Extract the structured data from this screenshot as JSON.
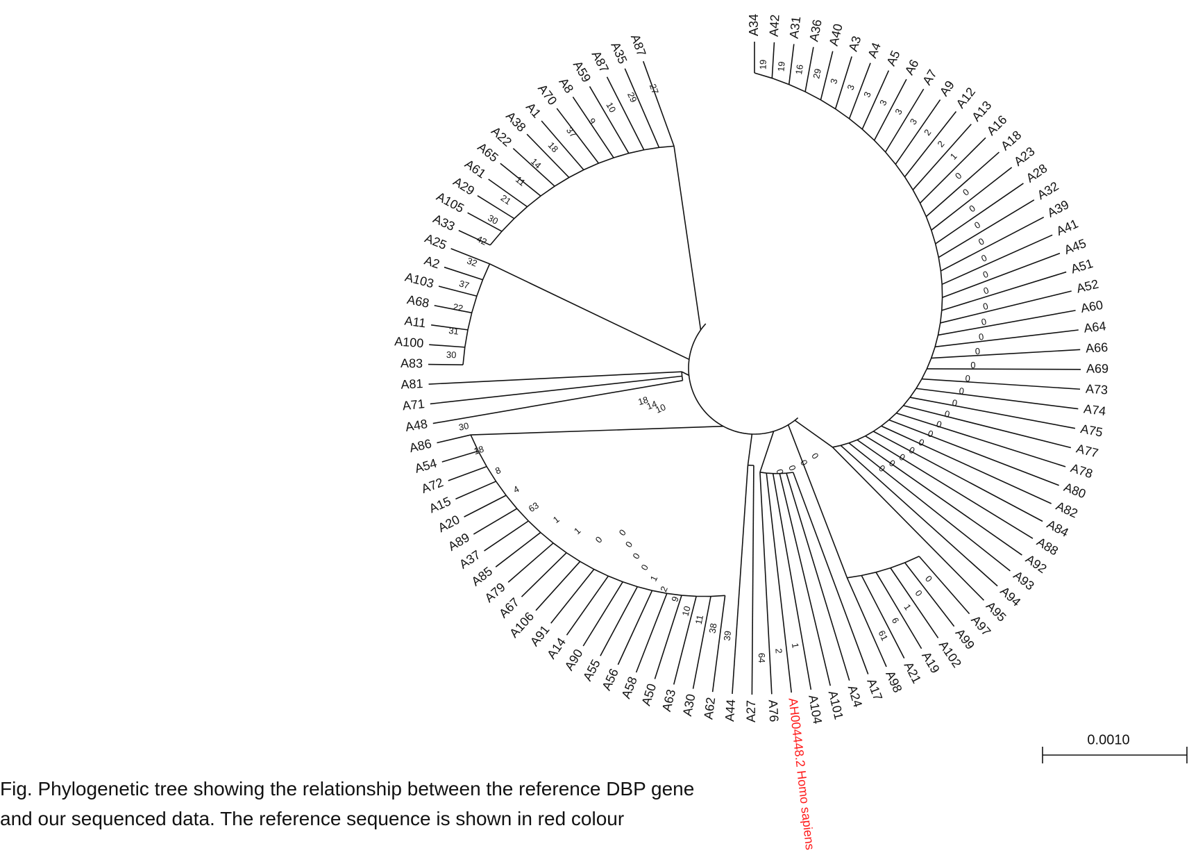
{
  "tree": {
    "leaves": [
      {
        "label": "A34"
      },
      {
        "label": "A42"
      },
      {
        "label": "A31"
      },
      {
        "label": "A36"
      },
      {
        "label": "A40"
      },
      {
        "label": "A3"
      },
      {
        "label": "A4"
      },
      {
        "label": "A5"
      },
      {
        "label": "A6"
      },
      {
        "label": "A7"
      },
      {
        "label": "A9"
      },
      {
        "label": "A12"
      },
      {
        "label": "A13"
      },
      {
        "label": "A16"
      },
      {
        "label": "A18"
      },
      {
        "label": "A23"
      },
      {
        "label": "A28"
      },
      {
        "label": "A32"
      },
      {
        "label": "A39"
      },
      {
        "label": "A41"
      },
      {
        "label": "A45"
      },
      {
        "label": "A51"
      },
      {
        "label": "A52"
      },
      {
        "label": "A60"
      },
      {
        "label": "A64"
      },
      {
        "label": "A66"
      },
      {
        "label": "A69"
      },
      {
        "label": "A73"
      },
      {
        "label": "A74"
      },
      {
        "label": "A75"
      },
      {
        "label": "A77"
      },
      {
        "label": "A78"
      },
      {
        "label": "A80"
      },
      {
        "label": "A82"
      },
      {
        "label": "A84"
      },
      {
        "label": "A88"
      },
      {
        "label": "A92"
      },
      {
        "label": "A93"
      },
      {
        "label": "A94"
      },
      {
        "label": "A95"
      },
      {
        "label": "A97"
      },
      {
        "label": "A99"
      },
      {
        "label": "A102"
      },
      {
        "label": "A19"
      },
      {
        "label": "A21"
      },
      {
        "label": "A98"
      },
      {
        "label": "A17"
      },
      {
        "label": "A24"
      },
      {
        "label": "A101"
      },
      {
        "label": "A104"
      },
      {
        "label": "AH004448.2 Homo sapiens",
        "color": "#ff1a1a"
      },
      {
        "label": "A76"
      },
      {
        "label": "A27"
      },
      {
        "label": "A44"
      },
      {
        "label": "A62"
      },
      {
        "label": "A30"
      },
      {
        "label": "A63"
      },
      {
        "label": "A50"
      },
      {
        "label": "A58"
      },
      {
        "label": "A56"
      },
      {
        "label": "A55"
      },
      {
        "label": "A90"
      },
      {
        "label": "A14"
      },
      {
        "label": "A91"
      },
      {
        "label": "A106"
      },
      {
        "label": "A67"
      },
      {
        "label": "A79"
      },
      {
        "label": "A85"
      },
      {
        "label": "A37"
      },
      {
        "label": "A89"
      },
      {
        "label": "A20"
      },
      {
        "label": "A15"
      },
      {
        "label": "A72"
      },
      {
        "label": "A54"
      },
      {
        "label": "A86"
      },
      {
        "label": "A48"
      },
      {
        "label": "A71"
      },
      {
        "label": "A81"
      },
      {
        "label": "A83"
      },
      {
        "label": "A100"
      },
      {
        "label": "A11"
      },
      {
        "label": "A68"
      },
      {
        "label": "A103"
      },
      {
        "label": "A2"
      },
      {
        "label": "A25"
      },
      {
        "label": "A33"
      },
      {
        "label": "A105"
      },
      {
        "label": "A29"
      },
      {
        "label": "A61"
      },
      {
        "label": "A65"
      },
      {
        "label": "A22"
      },
      {
        "label": "A38"
      },
      {
        "label": "A1"
      },
      {
        "label": "A70"
      },
      {
        "label": "A8"
      },
      {
        "label": "A59"
      },
      {
        "label": "A87"
      },
      {
        "label": "A35"
      },
      {
        "label": "A87"
      }
    ],
    "bootstrap": [
      19,
      19,
      16,
      29,
      3,
      3,
      3,
      3,
      3,
      3,
      2,
      2,
      1,
      0,
      0,
      0,
      0,
      0,
      0,
      0,
      0,
      0,
      0,
      0,
      0,
      0,
      0,
      0,
      0,
      0,
      0,
      0,
      0,
      0,
      0,
      0,
      0,
      0,
      0,
      0,
      0,
      0,
      0,
      1,
      6,
      61,
      1,
      2,
      64,
      39,
      38,
      11,
      10,
      9,
      2,
      1,
      0,
      0,
      0,
      0,
      0,
      1,
      1,
      63,
      4,
      8,
      18,
      30,
      10,
      14,
      18,
      30,
      31,
      22,
      37,
      32,
      42,
      30,
      21,
      11,
      14,
      18,
      37,
      9,
      10,
      29,
      27
    ],
    "scale_bar": {
      "label": "0.0010"
    }
  },
  "caption": {
    "lines": [
      "Fig. Phylogenetic tree showing the relationship between the reference DBP gene",
      "and our sequenced data. The reference sequence is shown in red colour"
    ]
  }
}
